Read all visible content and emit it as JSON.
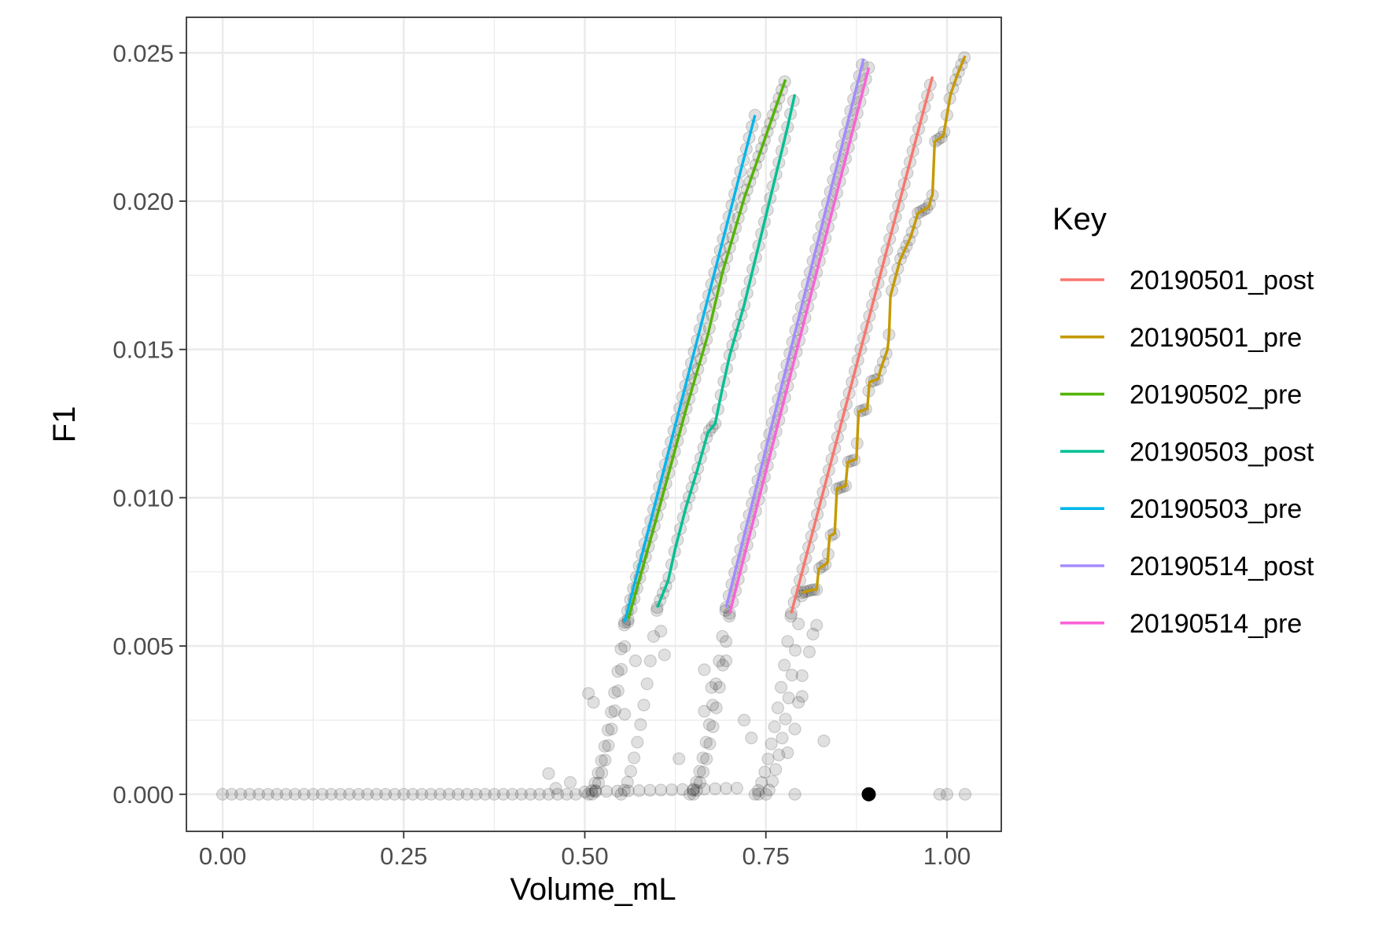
{
  "chart_data": {
    "type": "scatter",
    "xlabel": "Volume_mL",
    "ylabel": "F1",
    "xlim": [
      -0.05,
      1.075
    ],
    "ylim": [
      -0.00125,
      0.0262
    ],
    "x_ticks": [
      0.0,
      0.25,
      0.5,
      0.75,
      1.0
    ],
    "x_tick_labels": [
      "0.00",
      "0.25",
      "0.50",
      "0.75",
      "1.00"
    ],
    "y_ticks": [
      0.0,
      0.005,
      0.01,
      0.015,
      0.02,
      0.025
    ],
    "y_tick_labels": [
      "0.000",
      "0.005",
      "0.010",
      "0.015",
      "0.020",
      "0.025"
    ],
    "grid": true,
    "legend": {
      "title": "Key",
      "position": "right"
    },
    "series": [
      {
        "name": "20190501_post",
        "color": "#F8766D",
        "x_start": 0.785,
        "x_end": 0.98,
        "y_start": 0.0061,
        "y_end": 0.0242,
        "steps": []
      },
      {
        "name": "20190501_pre",
        "color": "#C49A00",
        "x_start": 0.8,
        "x_end": 1.025,
        "y_start": 0.0068,
        "y_end": 0.0249,
        "steps": [
          [
            0.8,
            0.0068
          ],
          [
            0.815,
            0.0069
          ],
          [
            0.82,
            0.0069
          ],
          [
            0.823,
            0.0076
          ],
          [
            0.835,
            0.0078
          ],
          [
            0.838,
            0.0087
          ],
          [
            0.845,
            0.0088
          ],
          [
            0.848,
            0.0103
          ],
          [
            0.86,
            0.0104
          ],
          [
            0.863,
            0.0112
          ],
          [
            0.875,
            0.0113
          ],
          [
            0.878,
            0.0129
          ],
          [
            0.89,
            0.013
          ],
          [
            0.893,
            0.0139
          ],
          [
            0.905,
            0.014
          ],
          [
            0.908,
            0.0143
          ],
          [
            0.918,
            0.015
          ],
          [
            0.92,
            0.0155
          ],
          [
            0.922,
            0.0168
          ],
          [
            0.935,
            0.018
          ],
          [
            0.95,
            0.0188
          ],
          [
            0.96,
            0.0196
          ],
          [
            0.975,
            0.0198
          ],
          [
            0.978,
            0.0201
          ],
          [
            0.98,
            0.0202
          ],
          [
            0.983,
            0.022
          ],
          [
            0.995,
            0.0222
          ],
          [
            1.005,
            0.0236
          ],
          [
            1.015,
            0.0243
          ],
          [
            1.025,
            0.0249
          ]
        ]
      },
      {
        "name": "20190502_pre",
        "color": "#53B400",
        "x_start": 0.56,
        "x_end": 0.777,
        "y_start": 0.0059,
        "y_end": 0.0241,
        "steps": [
          [
            0.56,
            0.0059
          ],
          [
            0.6,
            0.0094
          ],
          [
            0.64,
            0.013
          ],
          [
            0.67,
            0.0155
          ],
          [
            0.69,
            0.0176
          ],
          [
            0.72,
            0.0201
          ],
          [
            0.75,
            0.0222
          ],
          [
            0.777,
            0.0241
          ]
        ]
      },
      {
        "name": "20190503_post",
        "color": "#00C094",
        "x_start": 0.6,
        "x_end": 0.79,
        "y_start": 0.0063,
        "y_end": 0.0236,
        "steps": [
          [
            0.6,
            0.0063
          ],
          [
            0.615,
            0.0072
          ],
          [
            0.625,
            0.0083
          ],
          [
            0.64,
            0.0097
          ],
          [
            0.655,
            0.0109
          ],
          [
            0.67,
            0.0122
          ],
          [
            0.68,
            0.0125
          ],
          [
            0.69,
            0.0137
          ],
          [
            0.7,
            0.0148
          ],
          [
            0.72,
            0.0165
          ],
          [
            0.735,
            0.018
          ],
          [
            0.75,
            0.0195
          ],
          [
            0.765,
            0.021
          ],
          [
            0.78,
            0.0225
          ],
          [
            0.79,
            0.0236
          ]
        ]
      },
      {
        "name": "20190503_pre",
        "color": "#00B6EB",
        "x_start": 0.555,
        "x_end": 0.735,
        "y_start": 0.0058,
        "y_end": 0.0229,
        "steps": []
      },
      {
        "name": "20190514_post",
        "color": "#A58AFF",
        "x_start": 0.695,
        "x_end": 0.885,
        "y_start": 0.0063,
        "y_end": 0.0248,
        "steps": []
      },
      {
        "name": "20190514_pre",
        "color": "#FB61D7",
        "x_start": 0.7,
        "x_end": 0.892,
        "y_start": 0.0061,
        "y_end": 0.0245,
        "steps": []
      }
    ],
    "highlight_point": {
      "x": 0.892,
      "y": 0.0,
      "color": "#000000"
    }
  }
}
